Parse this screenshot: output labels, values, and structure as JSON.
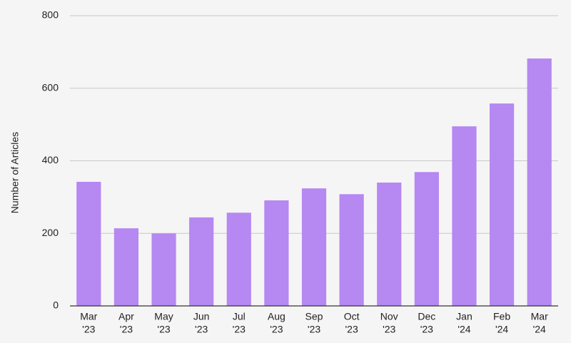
{
  "chart_data": {
    "type": "bar",
    "y_label": "Number of Articles",
    "categories": [
      [
        "Mar",
        "'23"
      ],
      [
        "Apr",
        "'23"
      ],
      [
        "May",
        "'23"
      ],
      [
        "Jun",
        "'23"
      ],
      [
        "Jul",
        "'23"
      ],
      [
        "Aug",
        "'23"
      ],
      [
        "Sep",
        "'23"
      ],
      [
        "Oct",
        "'23"
      ],
      [
        "Nov",
        "'23"
      ],
      [
        "Dec",
        "'23"
      ],
      [
        "Jan",
        "'24"
      ],
      [
        "Feb",
        "'24"
      ],
      [
        "Mar",
        "'24"
      ]
    ],
    "values": [
      342,
      214,
      200,
      244,
      257,
      291,
      324,
      308,
      340,
      369,
      495,
      558,
      682
    ],
    "color": "#b688f2",
    "ylim": [
      0,
      800
    ],
    "yticks": [
      0,
      200,
      400,
      600,
      800
    ],
    "grid": true
  }
}
